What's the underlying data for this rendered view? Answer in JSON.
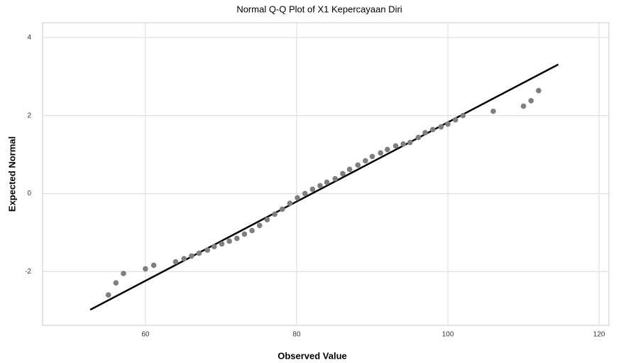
{
  "chart_data": {
    "type": "scatter",
    "title": "Normal Q-Q Plot of X1 Kepercayaan Diri",
    "x_label": "Observed Value",
    "y_label": "Expected Normal",
    "x": [
      55.1,
      56.1,
      57.1,
      60,
      61.1,
      64,
      65.1,
      66.1,
      67.1,
      68.2,
      69.1,
      70.1,
      71.1,
      72.1,
      73.1,
      74.1,
      75.1,
      76.1,
      77.1,
      78.1,
      79.1,
      80.1,
      81.1,
      82.1,
      83.1,
      84,
      85.1,
      86.1,
      87,
      88.1,
      89.1,
      90,
      91.1,
      92,
      93.1,
      94.1,
      95,
      96.1,
      97,
      98,
      99.1,
      100,
      101,
      102,
      106,
      110,
      111,
      112
    ],
    "y": [
      -2.6,
      -2.29,
      -2.05,
      -1.93,
      -1.84,
      -1.75,
      -1.67,
      -1.6,
      -1.53,
      -1.45,
      -1.36,
      -1.29,
      -1.22,
      -1.15,
      -1.04,
      -0.95,
      -0.82,
      -0.67,
      -0.53,
      -0.4,
      -0.25,
      -0.11,
      0,
      0.11,
      0.2,
      0.29,
      0.38,
      0.51,
      0.62,
      0.73,
      0.84,
      0.95,
      1.04,
      1.13,
      1.22,
      1.27,
      1.31,
      1.44,
      1.56,
      1.64,
      1.71,
      1.78,
      1.89,
      2.0,
      2.11,
      2.24,
      2.38,
      2.64
    ],
    "color": "#7f7f7f",
    "reference_line": {
      "x": [
        52.7,
        114.6
      ],
      "y": [
        -2.98,
        3.31
      ],
      "color": "#000000"
    },
    "xlim": [
      46.4,
      121.3
    ],
    "ylim": [
      -3.38,
      4.38
    ],
    "xticks": [
      60,
      80,
      100,
      120
    ],
    "yticks": [
      -2,
      0,
      2,
      4
    ],
    "grid": true
  }
}
